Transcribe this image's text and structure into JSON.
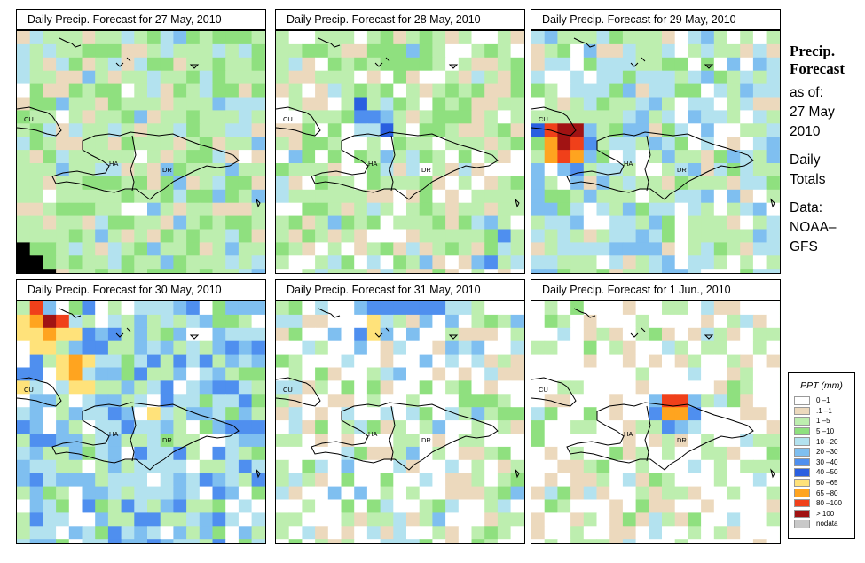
{
  "panels": [
    {
      "title": "Daily Precip. Forecast for  27 May, 2010"
    },
    {
      "title": "Daily Precip. Forecast for  28 May, 2010"
    },
    {
      "title": "Daily Precip. Forecast for  29 May, 2010"
    },
    {
      "title": "Daily Precip. Forecast for  30 May, 2010"
    },
    {
      "title": "Daily Precip. Forecast for  31 May, 2010"
    },
    {
      "title": "Daily Precip. Forecast for  1 Jun., 2010"
    }
  ],
  "map_labels": {
    "cu": "CU",
    "ha": "HA",
    "dr": "DR"
  },
  "sidebar": {
    "heading_line1": "Precip.",
    "heading_line2": "Forecast",
    "asof_label": "as of:",
    "date_line1": "27 May",
    "date_line2": "2010",
    "totals_line1": "Daily",
    "totals_line2": "Totals",
    "data_line1": "Data:",
    "data_line2": "NOAA–",
    "data_line3": "GFS"
  },
  "legend": {
    "title": "PPT (mm)",
    "classes": [
      {
        "label": "0 –1",
        "color": "#ffffff"
      },
      {
        "label": ".1 –1",
        "color": "#ecd9bd"
      },
      {
        "label": "1 –5",
        "color": "#bdeeaf"
      },
      {
        "label": "5 –10",
        "color": "#8fe07f"
      },
      {
        "label": "10 –20",
        "color": "#b3e2ef"
      },
      {
        "label": "20 –30",
        "color": "#7fbff0"
      },
      {
        "label": "30 –40",
        "color": "#4f8fef"
      },
      {
        "label": "40 –50",
        "color": "#2a5fe0"
      },
      {
        "label": "50 –65",
        "color": "#ffe27a"
      },
      {
        "label": "65 –80",
        "color": "#ffa41f"
      },
      {
        "label": "80 –100",
        "color": "#f0401a"
      },
      {
        "label": "> 100",
        "color": "#a11313"
      },
      {
        "label": "nodata",
        "color": "#c8c8c8"
      }
    ]
  }
}
